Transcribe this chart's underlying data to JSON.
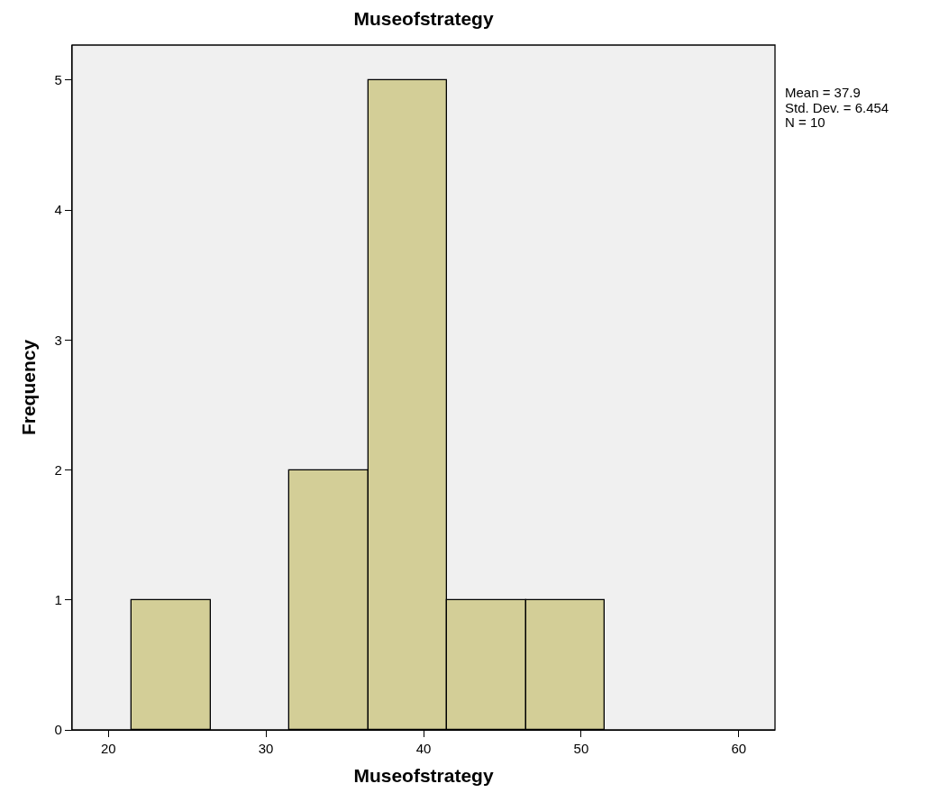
{
  "chart_data": {
    "type": "histogram",
    "title": "Museofstrategy",
    "xlabel": "Museofstrategy",
    "ylabel": "Frequency",
    "bins": [
      21.5,
      26.5,
      31.5,
      36.5,
      41.5,
      46.5,
      51.5
    ],
    "values": [
      1,
      0,
      2,
      5,
      1,
      1
    ],
    "color": "#d3ce97",
    "xlim": [
      17.7,
      62.3
    ],
    "xticks": [
      20,
      30,
      40,
      50,
      60
    ],
    "ylim": [
      0,
      5.27
    ],
    "yticks": [
      0,
      1,
      2,
      3,
      4,
      5
    ],
    "grid": false,
    "annotations": [
      "Mean = 37.9",
      "Std. Dev. = 6.454",
      "N = 10"
    ]
  }
}
